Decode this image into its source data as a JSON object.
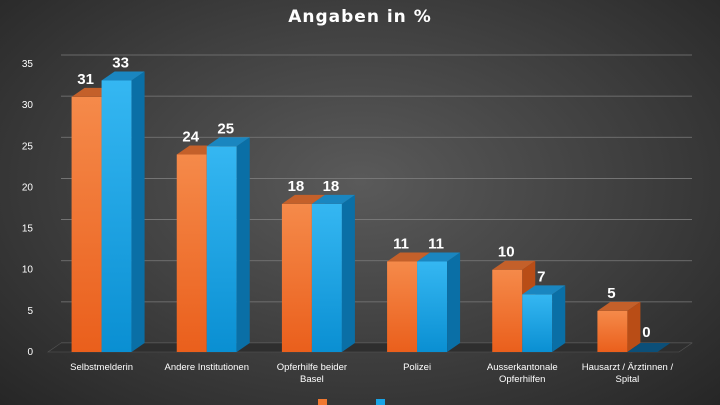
{
  "chart_data": {
    "type": "bar",
    "title": "Angaben in %",
    "categories": [
      "Selbstmelderin",
      "Andere Institutionen",
      "Opferhilfe beider Basel",
      "Polizei",
      "Ausserkantonale Opferhilfen",
      "Hausarzt / Ärztinnen / Spital"
    ],
    "category_lines": [
      [
        "Selbstmelderin"
      ],
      [
        "Andere Institutionen"
      ],
      [
        "Opferhilfe beider",
        "Basel"
      ],
      [
        "Polizei"
      ],
      [
        "Ausserkantonale",
        "Opferhilfen"
      ],
      [
        "Hausarzt / Ärztinnen /",
        "Spital"
      ]
    ],
    "series": [
      {
        "values": [
          31,
          24,
          18,
          11,
          10,
          5
        ],
        "color": "#f07830"
      },
      {
        "values": [
          33,
          25,
          18,
          11,
          7,
          0
        ],
        "color": "#18a4e6"
      }
    ],
    "ylim": [
      0,
      35
    ],
    "yticks": [
      0,
      5,
      10,
      15,
      20,
      25,
      30,
      35
    ],
    "grid": true,
    "legend_position": "bottom",
    "style": "3d-column"
  }
}
